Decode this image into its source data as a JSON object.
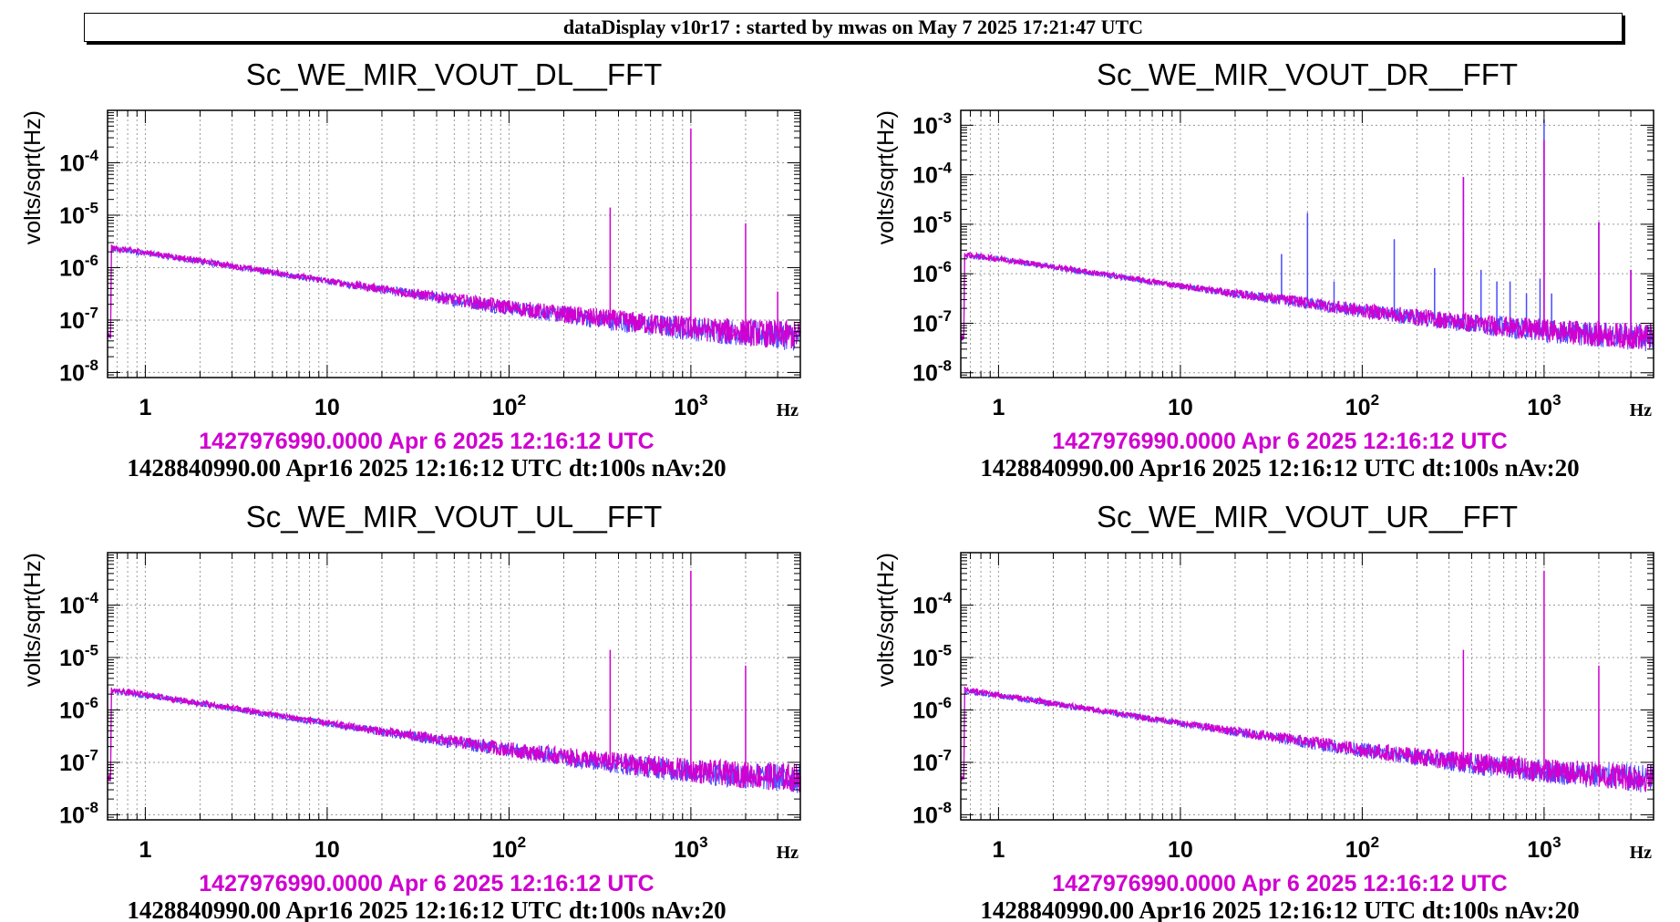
{
  "header": {
    "title": "dataDisplay v10r17 : started by mwas on May  7 2025 17:21:47 UTC"
  },
  "colors": {
    "reference": "#4a4aff",
    "current": "#d000d0",
    "grid": "#9a9a9a",
    "ref_label": "#d000d0",
    "frame": "#000000"
  },
  "chart_data": [
    {
      "type": "line",
      "title": "Sc_WE_MIR_VOUT_DL__FFT",
      "ylabel": "volts/sqrt(Hz)",
      "xlabel": "Hz",
      "xscale": "log",
      "yscale": "log",
      "xlim": [
        0.62,
        4000
      ],
      "ylim": [
        8e-09,
        0.001
      ],
      "x_ticks": [
        "1",
        "10",
        "10^2",
        "10^3"
      ],
      "y_ticks": [
        "10^-8",
        "10^-7",
        "10^-6",
        "10^-5",
        "10^-4"
      ],
      "grid": true,
      "series": [
        {
          "color": "reference",
          "points": [
            [
              0.65,
              2.3e-06
            ],
            [
              1,
              1.9e-06
            ],
            [
              2,
              1.3e-06
            ],
            [
              5,
              8e-07
            ],
            [
              10,
              5.5e-07
            ],
            [
              20,
              3.8e-07
            ],
            [
              50,
              2.4e-07
            ],
            [
              100,
              1.7e-07
            ],
            [
              200,
              1.25e-07
            ],
            [
              500,
              8.5e-08
            ],
            [
              1000,
              6.8e-08
            ],
            [
              2000,
              5.6e-08
            ],
            [
              4000,
              4.8e-08
            ]
          ],
          "lines": []
        },
        {
          "color": "current",
          "points": [
            [
              0.65,
              2.4e-06
            ],
            [
              1,
              1.95e-06
            ],
            [
              2,
              1.35e-06
            ],
            [
              5,
              8.2e-07
            ],
            [
              10,
              5.6e-07
            ],
            [
              20,
              3.9e-07
            ],
            [
              50,
              2.5e-07
            ],
            [
              100,
              1.75e-07
            ],
            [
              200,
              1.3e-07
            ],
            [
              500,
              9e-08
            ],
            [
              1000,
              7e-08
            ],
            [
              2000,
              5.8e-08
            ],
            [
              4000,
              5e-08
            ]
          ],
          "lines": [
            [
              360,
              1.4e-05
            ],
            [
              1000,
              0.00045
            ],
            [
              2000,
              7e-06
            ],
            [
              3000,
              3.5e-07
            ]
          ]
        }
      ],
      "ref_time": "1427976990.0000 Apr 6 2025 12:16:12 UTC",
      "footer": "1428840990.00 Apr16 2025 12:16:12 UTC dt:100s nAv:20"
    },
    {
      "type": "line",
      "title": "Sc_WE_MIR_VOUT_DR__FFT",
      "ylabel": "volts/sqrt(Hz)",
      "xlabel": "Hz",
      "xscale": "log",
      "yscale": "log",
      "xlim": [
        0.62,
        4000
      ],
      "ylim": [
        8e-09,
        0.002
      ],
      "x_ticks": [
        "1",
        "10",
        "10^2",
        "10^3"
      ],
      "y_ticks": [
        "10^-8",
        "10^-7",
        "10^-6",
        "10^-5",
        "10^-4",
        "10^-3"
      ],
      "grid": true,
      "series": [
        {
          "color": "reference",
          "points": [
            [
              0.65,
              2.4e-06
            ],
            [
              1,
              2e-06
            ],
            [
              2,
              1.35e-06
            ],
            [
              5,
              8.2e-07
            ],
            [
              10,
              5.6e-07
            ],
            [
              20,
              3.9e-07
            ],
            [
              50,
              2.5e-07
            ],
            [
              100,
              1.75e-07
            ],
            [
              200,
              1.3e-07
            ],
            [
              500,
              9e-08
            ],
            [
              1000,
              7e-08
            ],
            [
              2000,
              5.8e-08
            ],
            [
              4000,
              5e-08
            ]
          ],
          "lines": [
            [
              36,
              2.5e-06
            ],
            [
              50,
              1.7e-05
            ],
            [
              70,
              7e-07
            ],
            [
              150,
              5e-06
            ],
            [
              250,
              1.3e-06
            ],
            [
              360,
              9e-05
            ],
            [
              450,
              1.2e-06
            ],
            [
              550,
              7e-07
            ],
            [
              650,
              7e-07
            ],
            [
              800,
              4e-07
            ],
            [
              950,
              8e-07
            ],
            [
              1000,
              0.0013
            ],
            [
              1100,
              4e-07
            ],
            [
              2000,
              1.1e-05
            ],
            [
              3000,
              1.2e-06
            ]
          ]
        },
        {
          "color": "current",
          "points": [
            [
              0.65,
              2.45e-06
            ],
            [
              1,
              2e-06
            ],
            [
              2,
              1.4e-06
            ],
            [
              5,
              8.4e-07
            ],
            [
              10,
              5.7e-07
            ],
            [
              20,
              4e-07
            ],
            [
              50,
              2.6e-07
            ],
            [
              100,
              1.8e-07
            ],
            [
              200,
              1.35e-07
            ],
            [
              500,
              9.2e-08
            ],
            [
              1000,
              7.2e-08
            ],
            [
              2000,
              6e-08
            ],
            [
              4000,
              5.2e-08
            ]
          ],
          "lines": [
            [
              360,
              9e-05
            ],
            [
              1000,
              0.0005
            ],
            [
              2000,
              1.1e-05
            ],
            [
              3000,
              1.2e-06
            ]
          ]
        }
      ],
      "ref_time": "1427976990.0000 Apr 6 2025 12:16:12 UTC",
      "footer": "1428840990.00 Apr16 2025 12:16:12 UTC dt:100s nAv:20"
    },
    {
      "type": "line",
      "title": "Sc_WE_MIR_VOUT_UL__FFT",
      "ylabel": "volts/sqrt(Hz)",
      "xlabel": "Hz",
      "xscale": "log",
      "yscale": "log",
      "xlim": [
        0.62,
        4000
      ],
      "ylim": [
        8e-09,
        0.001
      ],
      "x_ticks": [
        "1",
        "10",
        "10^2",
        "10^3"
      ],
      "y_ticks": [
        "10^-8",
        "10^-7",
        "10^-6",
        "10^-5",
        "10^-4"
      ],
      "grid": true,
      "series": [
        {
          "color": "reference",
          "points": [
            [
              0.65,
              2.3e-06
            ],
            [
              1,
              1.9e-06
            ],
            [
              2,
              1.3e-06
            ],
            [
              5,
              8e-07
            ],
            [
              10,
              5.5e-07
            ],
            [
              20,
              3.8e-07
            ],
            [
              50,
              2.4e-07
            ],
            [
              100,
              1.7e-07
            ],
            [
              200,
              1.25e-07
            ],
            [
              500,
              8.5e-08
            ],
            [
              1000,
              6.8e-08
            ],
            [
              2000,
              5.6e-08
            ],
            [
              4000,
              4.8e-08
            ]
          ],
          "lines": []
        },
        {
          "color": "current",
          "points": [
            [
              0.65,
              2.4e-06
            ],
            [
              1,
              1.95e-06
            ],
            [
              2,
              1.35e-06
            ],
            [
              5,
              8.2e-07
            ],
            [
              10,
              5.6e-07
            ],
            [
              20,
              3.9e-07
            ],
            [
              50,
              2.5e-07
            ],
            [
              100,
              1.75e-07
            ],
            [
              200,
              1.3e-07
            ],
            [
              500,
              9e-08
            ],
            [
              1000,
              7e-08
            ],
            [
              2000,
              5.8e-08
            ],
            [
              4000,
              5e-08
            ]
          ],
          "lines": [
            [
              360,
              1.4e-05
            ],
            [
              1000,
              0.00045
            ],
            [
              2000,
              7e-06
            ]
          ]
        }
      ],
      "ref_time": "1427976990.0000 Apr 6 2025 12:16:12 UTC",
      "footer": "1428840990.00 Apr16 2025 12:16:12 UTC dt:100s nAv:20"
    },
    {
      "type": "line",
      "title": "Sc_WE_MIR_VOUT_UR__FFT",
      "ylabel": "volts/sqrt(Hz)",
      "xlabel": "Hz",
      "xscale": "log",
      "yscale": "log",
      "xlim": [
        0.62,
        4000
      ],
      "ylim": [
        8e-09,
        0.001
      ],
      "x_ticks": [
        "1",
        "10",
        "10^2",
        "10^3"
      ],
      "y_ticks": [
        "10^-8",
        "10^-7",
        "10^-6",
        "10^-5",
        "10^-4"
      ],
      "grid": true,
      "series": [
        {
          "color": "reference",
          "points": [
            [
              0.65,
              2.3e-06
            ],
            [
              1,
              1.9e-06
            ],
            [
              2,
              1.3e-06
            ],
            [
              5,
              8e-07
            ],
            [
              10,
              5.5e-07
            ],
            [
              20,
              3.8e-07
            ],
            [
              50,
              2.4e-07
            ],
            [
              100,
              1.7e-07
            ],
            [
              200,
              1.25e-07
            ],
            [
              500,
              8.5e-08
            ],
            [
              1000,
              6.8e-08
            ],
            [
              2000,
              5.6e-08
            ],
            [
              4000,
              4.8e-08
            ]
          ],
          "lines": []
        },
        {
          "color": "current",
          "points": [
            [
              0.65,
              2.4e-06
            ],
            [
              1,
              1.95e-06
            ],
            [
              2,
              1.35e-06
            ],
            [
              5,
              8.2e-07
            ],
            [
              10,
              5.6e-07
            ],
            [
              20,
              3.9e-07
            ],
            [
              50,
              2.5e-07
            ],
            [
              100,
              1.75e-07
            ],
            [
              200,
              1.3e-07
            ],
            [
              500,
              9e-08
            ],
            [
              1000,
              7e-08
            ],
            [
              2000,
              5.8e-08
            ],
            [
              4000,
              5e-08
            ]
          ],
          "lines": [
            [
              360,
              1.4e-05
            ],
            [
              1000,
              0.00045
            ],
            [
              2000,
              7e-06
            ]
          ]
        }
      ],
      "ref_time": "1427976990.0000 Apr 6 2025 12:16:12 UTC",
      "footer": "1428840990.00 Apr16 2025 12:16:12 UTC dt:100s nAv:20"
    }
  ]
}
